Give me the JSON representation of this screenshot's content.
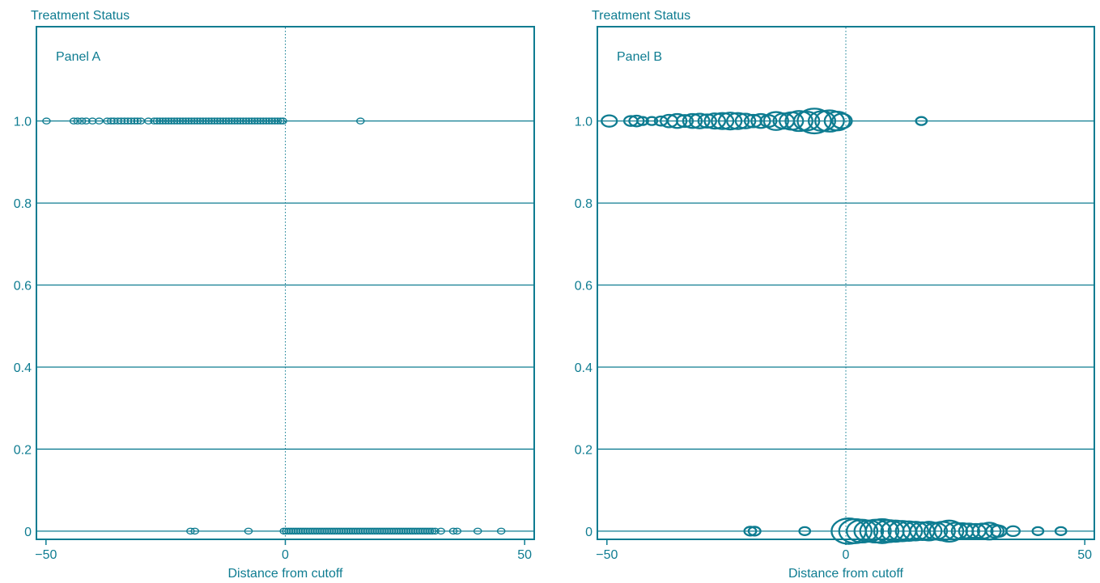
{
  "accent_color": "#0e7c91",
  "chart_data": [
    {
      "type": "scatter",
      "panel_label": "Panel A",
      "ylabel": "Treatment Status",
      "xlabel": "Distance from cutoff",
      "xlim": [
        -52,
        52
      ],
      "ylim": [
        -0.02,
        1.23
      ],
      "xticks": [
        -50,
        0,
        50
      ],
      "xtick_labels": [
        "−50",
        "0",
        "50"
      ],
      "yticks": [
        0,
        0.2,
        0.4,
        0.6,
        0.8,
        1.0
      ],
      "ytick_labels": [
        "0",
        "0.2",
        "0.4",
        "0.6",
        "0.8",
        "1.0"
      ],
      "horizontal_grid": true,
      "cutoff_line": 0,
      "marker": "hollow-circle",
      "series": [
        {
          "y": 1,
          "x": [
            -49.9,
            -44.2,
            -43.4,
            -42.5,
            -41.6,
            -40.3,
            -38.9,
            -37.2,
            -36.4,
            -35.8,
            -35.0,
            -34.3,
            -33.6,
            -32.9,
            -32.2,
            -31.5,
            -30.9,
            -30.2,
            -28.6,
            -27.4,
            -26.8,
            -26.2,
            -25.6,
            -25.0,
            -24.4,
            -23.8,
            -23.2,
            -22.6,
            -22.0,
            -21.4,
            -20.8,
            -20.2,
            -19.6,
            -19.0,
            -18.4,
            -17.8,
            -17.2,
            -16.6,
            -16.0,
            -15.4,
            -14.8,
            -14.2,
            -13.6,
            -13.0,
            -12.4,
            -11.8,
            -11.2,
            -10.6,
            -10.0,
            -9.4,
            -8.8,
            -8.2,
            -7.6,
            -7.0,
            -6.4,
            -5.8,
            -5.2,
            -4.6,
            -4.0,
            -3.4,
            -2.8,
            -2.2,
            -1.6,
            -1.0,
            -0.5,
            15.7
          ]
        },
        {
          "y": 0,
          "x": [
            -19.8,
            -18.9,
            -7.7,
            -0.3,
            0.2,
            0.7,
            1.2,
            1.7,
            2.2,
            2.7,
            3.2,
            3.7,
            4.2,
            4.7,
            5.2,
            5.7,
            6.2,
            6.7,
            7.2,
            7.7,
            8.2,
            8.7,
            9.2,
            9.7,
            10.2,
            10.7,
            11.2,
            11.7,
            12.2,
            12.7,
            13.2,
            13.7,
            14.2,
            14.7,
            15.2,
            15.7,
            16.2,
            16.7,
            17.2,
            17.7,
            18.2,
            18.7,
            19.2,
            19.7,
            20.2,
            20.7,
            21.2,
            21.7,
            22.2,
            22.7,
            23.2,
            23.7,
            24.2,
            24.7,
            25.2,
            25.7,
            26.2,
            26.7,
            27.2,
            27.7,
            28.2,
            28.7,
            29.2,
            29.7,
            30.2,
            30.7,
            31.3,
            32.5,
            35.1,
            35.9,
            40.2,
            45.1
          ]
        }
      ]
    },
    {
      "type": "scatter",
      "panel_label": "Panel B",
      "ylabel": "Treatment Status",
      "xlabel": "Distance from cutoff",
      "xlim": [
        -52,
        52
      ],
      "ylim": [
        -0.02,
        1.23
      ],
      "xticks": [
        -50,
        0,
        50
      ],
      "xtick_labels": [
        "−50",
        "0",
        "50"
      ],
      "yticks": [
        0,
        0.2,
        0.4,
        0.6,
        0.8,
        1.0
      ],
      "ytick_labels": [
        "0",
        "0.2",
        "0.4",
        "0.6",
        "0.8",
        "1.0"
      ],
      "horizontal_grid": true,
      "cutoff_line": 0,
      "marker": "hollow-circle",
      "marker_size_note": "circle area proportional to number of observations",
      "series": [
        {
          "y": 1,
          "points": [
            {
              "x": -49.5,
              "weight": 2
            },
            {
              "x": -45.0,
              "weight": 1.5
            },
            {
              "x": -43.8,
              "weight": 1.8
            },
            {
              "x": -42.5,
              "weight": 1
            },
            {
              "x": -40.6,
              "weight": 1
            },
            {
              "x": -38.7,
              "weight": 1.3
            },
            {
              "x": -37.0,
              "weight": 2.4
            },
            {
              "x": -35.3,
              "weight": 3
            },
            {
              "x": -33.7,
              "weight": 2.2
            },
            {
              "x": -32.1,
              "weight": 3
            },
            {
              "x": -30.6,
              "weight": 3.3
            },
            {
              "x": -29.0,
              "weight": 2.7
            },
            {
              "x": -27.4,
              "weight": 3.6
            },
            {
              "x": -25.8,
              "weight": 4
            },
            {
              "x": -24.2,
              "weight": 4.4
            },
            {
              "x": -22.6,
              "weight": 4
            },
            {
              "x": -21.0,
              "weight": 3.3
            },
            {
              "x": -19.4,
              "weight": 2.4
            },
            {
              "x": -17.8,
              "weight": 3
            },
            {
              "x": -16.2,
              "weight": 2.2
            },
            {
              "x": -14.6,
              "weight": 5
            },
            {
              "x": -13.0,
              "weight": 3.6
            },
            {
              "x": -11.4,
              "weight": 4.7
            },
            {
              "x": -9.8,
              "weight": 6.2
            },
            {
              "x": -8.2,
              "weight": 5.4
            },
            {
              "x": -6.6,
              "weight": 9.5
            },
            {
              "x": -5.0,
              "weight": 6
            },
            {
              "x": -3.4,
              "weight": 7
            },
            {
              "x": -1.8,
              "weight": 5.4
            },
            {
              "x": -0.8,
              "weight": 3.3
            },
            {
              "x": 15.8,
              "weight": 1
            }
          ]
        },
        {
          "y": 0,
          "points": [
            {
              "x": -20.0,
              "weight": 1.2
            },
            {
              "x": -19.1,
              "weight": 1.2
            },
            {
              "x": -8.6,
              "weight": 1
            },
            {
              "x": 0.6,
              "weight": 10
            },
            {
              "x": 2.0,
              "weight": 9
            },
            {
              "x": 3.4,
              "weight": 8
            },
            {
              "x": 4.8,
              "weight": 7
            },
            {
              "x": 6.2,
              "weight": 8
            },
            {
              "x": 7.6,
              "weight": 9
            },
            {
              "x": 9.0,
              "weight": 7.5
            },
            {
              "x": 10.4,
              "weight": 7
            },
            {
              "x": 11.8,
              "weight": 6.4
            },
            {
              "x": 13.2,
              "weight": 5.9
            },
            {
              "x": 14.6,
              "weight": 5.4
            },
            {
              "x": 16.0,
              "weight": 4.9
            },
            {
              "x": 17.4,
              "weight": 5.4
            },
            {
              "x": 18.8,
              "weight": 4.4
            },
            {
              "x": 20.2,
              "weight": 5.4
            },
            {
              "x": 21.6,
              "weight": 6.9
            },
            {
              "x": 23.0,
              "weight": 4.4
            },
            {
              "x": 24.4,
              "weight": 3.9
            },
            {
              "x": 25.8,
              "weight": 3.5
            },
            {
              "x": 27.2,
              "weight": 3.2
            },
            {
              "x": 28.6,
              "weight": 3.5
            },
            {
              "x": 30.0,
              "weight": 4.4
            },
            {
              "x": 31.2,
              "weight": 2.6
            },
            {
              "x": 32.0,
              "weight": 2
            },
            {
              "x": 35.0,
              "weight": 1.5
            },
            {
              "x": 40.2,
              "weight": 1
            },
            {
              "x": 45.0,
              "weight": 1
            }
          ]
        }
      ]
    }
  ]
}
